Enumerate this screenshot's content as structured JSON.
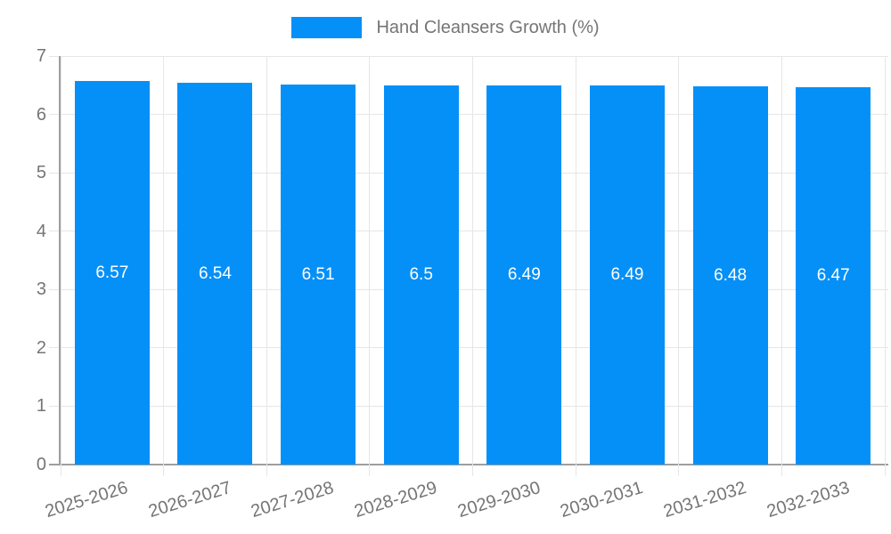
{
  "chart_data": {
    "type": "bar",
    "title": "Hand Cleansers Growth (%)",
    "categories": [
      "2025-2026",
      "2026-2027",
      "2027-2028",
      "2028-2029",
      "2029-2030",
      "2030-2031",
      "2031-2032",
      "2032-2033"
    ],
    "values": [
      6.57,
      6.54,
      6.51,
      6.5,
      6.49,
      6.49,
      6.48,
      6.47
    ],
    "bar_labels": [
      "6.57",
      "6.54",
      "6.51",
      "6.5",
      "6.49",
      "6.49",
      "6.48",
      "6.47"
    ],
    "xlabel": "",
    "ylabel": "",
    "ylim": [
      0,
      7
    ],
    "yticks": [
      0,
      1,
      2,
      3,
      4,
      5,
      6,
      7
    ],
    "grid": true,
    "legend_position": "top",
    "colors": {
      "bar": "#0590F8",
      "bar_label": "#ffffff",
      "axis_text": "#757575",
      "gridline": "#e6e6e6",
      "axis_line": "#9e9e9e",
      "background": "#ffffff"
    }
  }
}
